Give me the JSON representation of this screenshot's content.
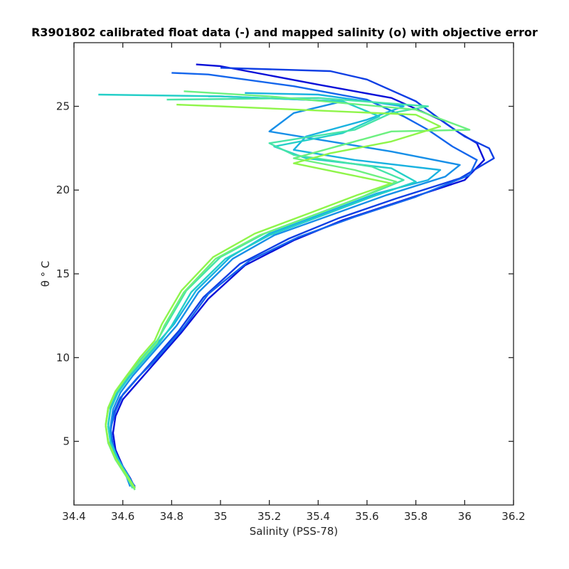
{
  "chart_data": {
    "type": "line",
    "title": "R3901802 calibrated float data (-) and mapped salinity (o) with objective error",
    "xlabel": "Salinity (PSS-78)",
    "ylabel": "θ ° C",
    "xlim": [
      34.4,
      36.2
    ],
    "ylim": [
      1.2,
      28.8
    ],
    "xticks": [
      34.4,
      34.6,
      34.8,
      35,
      35.2,
      35.4,
      35.6,
      35.8,
      36,
      36.2
    ],
    "xtick_labels": [
      "34.4",
      "34.6",
      "34.8",
      "35",
      "35.2",
      "35.4",
      "35.6",
      "35.8",
      "36",
      "36.2"
    ],
    "yticks": [
      5,
      10,
      15,
      20,
      25
    ],
    "ytick_labels": [
      "5",
      "10",
      "15",
      "20",
      "25"
    ],
    "grid": false,
    "legend": "none",
    "colormap": "parula (early profiles dark blue, late profiles yellow-green)",
    "colors": {
      "early": "#0a10d8",
      "mid": "#1aa6e6",
      "late": "#8ff54a",
      "axis": "#262626"
    },
    "series": [
      {
        "x": [
          34.65,
          34.63,
          34.6,
          34.57,
          34.56,
          34.57,
          34.6,
          34.66,
          34.72,
          34.78,
          34.84,
          34.95,
          35.1,
          35.3,
          35.5,
          35.75,
          36.0,
          36.08,
          36.05,
          35.98,
          35.9,
          35.7,
          35.4,
          35.0,
          34.9
        ],
        "y": [
          2.2,
          2.8,
          3.5,
          4.5,
          5.5,
          6.5,
          7.5,
          8.5,
          9.5,
          10.5,
          11.5,
          13.5,
          15.5,
          17.0,
          18.2,
          19.4,
          20.6,
          21.8,
          22.8,
          23.4,
          24.2,
          25.5,
          26.3,
          27.4,
          27.5
        ]
      },
      {
        "x": [
          34.65,
          34.62,
          34.59,
          34.56,
          34.55,
          34.56,
          34.59,
          34.65,
          34.71,
          34.77,
          34.83,
          34.93,
          35.08,
          35.28,
          35.48,
          35.72,
          35.98,
          36.12,
          36.1,
          36.0,
          35.92,
          35.8,
          35.6,
          35.45,
          35.0
        ],
        "y": [
          2.3,
          2.9,
          3.6,
          4.6,
          5.6,
          6.6,
          7.6,
          8.6,
          9.6,
          10.6,
          11.6,
          13.6,
          15.6,
          17.1,
          18.3,
          19.5,
          20.7,
          21.9,
          22.5,
          23.2,
          24.0,
          25.3,
          26.6,
          27.1,
          27.3
        ]
      },
      {
        "x": [
          34.64,
          34.62,
          34.58,
          34.56,
          34.55,
          34.57,
          34.6,
          34.66,
          34.73,
          34.79,
          34.85,
          34.95,
          35.12,
          35.32,
          35.55,
          35.8,
          36.02,
          36.05,
          35.95,
          35.85,
          35.75,
          35.6,
          35.3,
          34.95,
          34.8
        ],
        "y": [
          2.4,
          3.0,
          3.8,
          4.8,
          5.8,
          6.8,
          7.8,
          8.8,
          9.8,
          10.8,
          11.8,
          13.8,
          15.8,
          17.2,
          18.4,
          19.6,
          20.9,
          21.8,
          22.6,
          23.6,
          24.4,
          25.4,
          26.2,
          26.9,
          27.0
        ]
      },
      {
        "x": [
          34.63,
          34.61,
          34.58,
          34.55,
          34.55,
          34.56,
          34.59,
          34.64,
          34.7,
          34.76,
          34.82,
          34.91,
          35.05,
          35.22,
          35.45,
          35.68,
          35.92,
          35.98,
          35.7,
          35.45,
          35.2,
          35.3,
          35.5,
          35.0,
          34.95
        ],
        "y": [
          2.3,
          3.1,
          3.9,
          4.9,
          5.9,
          6.9,
          7.9,
          8.9,
          9.9,
          10.9,
          11.9,
          13.9,
          15.9,
          17.3,
          18.5,
          19.7,
          20.8,
          21.5,
          22.3,
          22.9,
          23.5,
          24.6,
          25.3,
          25.6,
          25.6
        ]
      },
      {
        "x": [
          34.64,
          34.61,
          34.58,
          34.55,
          34.54,
          34.55,
          34.58,
          34.63,
          34.69,
          34.75,
          34.81,
          34.9,
          35.04,
          35.2,
          35.42,
          35.64,
          35.85,
          35.9,
          35.55,
          35.3,
          35.35,
          35.6,
          35.75,
          35.4,
          35.1
        ],
        "y": [
          2.2,
          3.2,
          4.0,
          5.0,
          6.0,
          7.0,
          8.0,
          9.0,
          10.0,
          11.0,
          12.0,
          14.0,
          16.0,
          17.4,
          18.6,
          19.8,
          20.6,
          21.2,
          21.8,
          22.4,
          23.2,
          24.2,
          25.0,
          25.7,
          25.8
        ]
      },
      {
        "x": [
          34.65,
          34.62,
          34.58,
          34.55,
          34.54,
          34.55,
          34.58,
          34.63,
          34.69,
          34.75,
          34.8,
          34.88,
          35.02,
          35.2,
          35.42,
          35.62,
          35.8,
          35.7,
          35.35,
          35.22,
          35.5,
          35.65,
          35.5,
          35.0,
          34.5
        ],
        "y": [
          2.2,
          3.0,
          3.9,
          4.9,
          5.9,
          6.9,
          7.9,
          8.9,
          9.9,
          10.9,
          11.9,
          13.9,
          15.9,
          17.3,
          18.5,
          19.6,
          20.5,
          21.3,
          21.9,
          22.6,
          23.4,
          24.4,
          25.3,
          25.6,
          25.7
        ]
      },
      {
        "x": [
          34.64,
          34.61,
          34.57,
          34.54,
          34.53,
          34.54,
          34.57,
          34.62,
          34.68,
          34.74,
          34.78,
          34.86,
          35.0,
          35.18,
          35.4,
          35.6,
          35.75,
          35.62,
          35.3,
          35.2,
          35.55,
          35.7,
          35.85,
          35.4,
          34.78
        ],
        "y": [
          2.2,
          3.1,
          4.0,
          5.0,
          6.0,
          7.0,
          8.0,
          9.0,
          10.0,
          11.0,
          12.0,
          14.0,
          16.0,
          17.4,
          18.6,
          19.7,
          20.6,
          21.4,
          22.1,
          22.8,
          23.6,
          24.6,
          25.0,
          25.5,
          25.4
        ]
      },
      {
        "x": [
          34.65,
          34.61,
          34.57,
          34.54,
          34.53,
          34.54,
          34.57,
          34.62,
          34.68,
          34.74,
          34.77,
          34.85,
          34.98,
          35.16,
          35.38,
          35.58,
          35.72,
          35.55,
          35.3,
          35.5,
          35.7,
          36.02,
          35.8,
          35.2,
          34.85
        ],
        "y": [
          2.1,
          3.0,
          3.9,
          4.9,
          5.9,
          6.9,
          7.9,
          8.9,
          9.9,
          10.9,
          11.9,
          13.9,
          15.9,
          17.3,
          18.5,
          19.6,
          20.5,
          21.2,
          21.9,
          22.7,
          23.5,
          23.6,
          24.8,
          25.6,
          25.9
        ]
      },
      {
        "x": [
          34.65,
          34.61,
          34.57,
          34.54,
          34.53,
          34.54,
          34.57,
          34.62,
          34.67,
          34.73,
          34.76,
          34.84,
          34.97,
          35.14,
          35.36,
          35.56,
          35.7,
          35.5,
          35.3,
          35.45,
          35.7,
          35.9,
          35.8,
          35.0,
          34.82
        ],
        "y": [
          2.2,
          3.1,
          4.0,
          5.0,
          6.0,
          7.0,
          8.0,
          9.0,
          10.0,
          11.0,
          12.0,
          14.0,
          16.0,
          17.4,
          18.6,
          19.7,
          20.4,
          21.0,
          21.6,
          22.2,
          22.9,
          23.8,
          24.5,
          25.0,
          25.1
        ]
      }
    ],
    "series_colors": [
      "#0a10d8",
      "#0f3fe4",
      "#1466ec",
      "#178fe8",
      "#1ab2e0",
      "#25cfc8",
      "#46e4a8",
      "#6cf080",
      "#8ff54a"
    ]
  }
}
